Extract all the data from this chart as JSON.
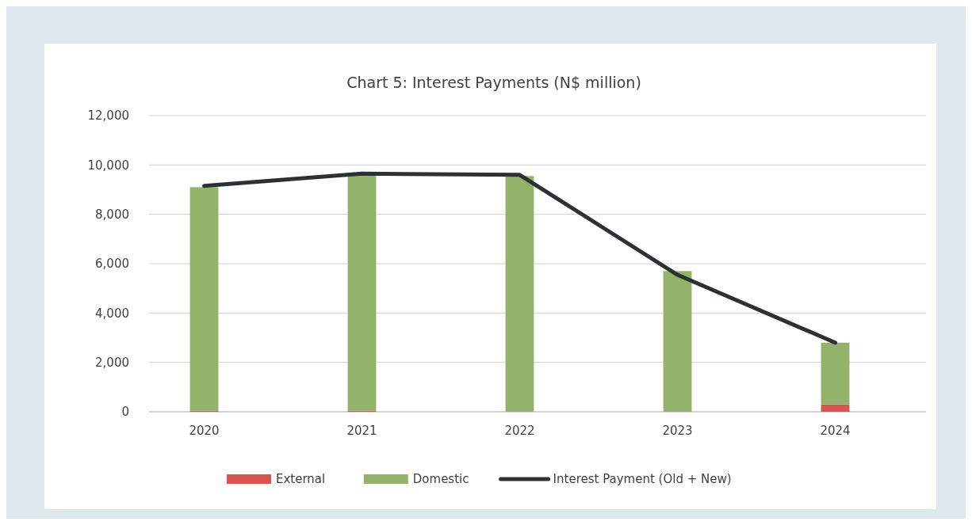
{
  "chart_data": {
    "type": "bar",
    "title": "Chart 5: Interest Payments (N$ million)",
    "categories": [
      "2020",
      "2021",
      "2022",
      "2023",
      "2024"
    ],
    "stacked": true,
    "series": [
      {
        "name": "External",
        "color": "#d9534f",
        "values": [
          50,
          50,
          0,
          0,
          300
        ]
      },
      {
        "name": "Domestic",
        "color": "#93b36a",
        "values": [
          9050,
          9550,
          9550,
          5700,
          2500
        ]
      },
      {
        "name": "Interest Payment (Old + New)",
        "type": "line",
        "color": "#2e3133",
        "values": [
          9150,
          9650,
          9600,
          5550,
          2800
        ]
      }
    ],
    "ylim": [
      0,
      12000
    ],
    "yticks": [
      {
        "value": 0,
        "label": "0"
      },
      {
        "value": 2000,
        "label": "2,000"
      },
      {
        "value": 4000,
        "label": "4,000"
      },
      {
        "value": 6000,
        "label": "6,000"
      },
      {
        "value": 8000,
        "label": "8,000"
      },
      {
        "value": 10000,
        "label": "10,000"
      },
      {
        "value": 12000,
        "label": "12,000"
      }
    ],
    "grid": "y",
    "legend": "bottom"
  }
}
